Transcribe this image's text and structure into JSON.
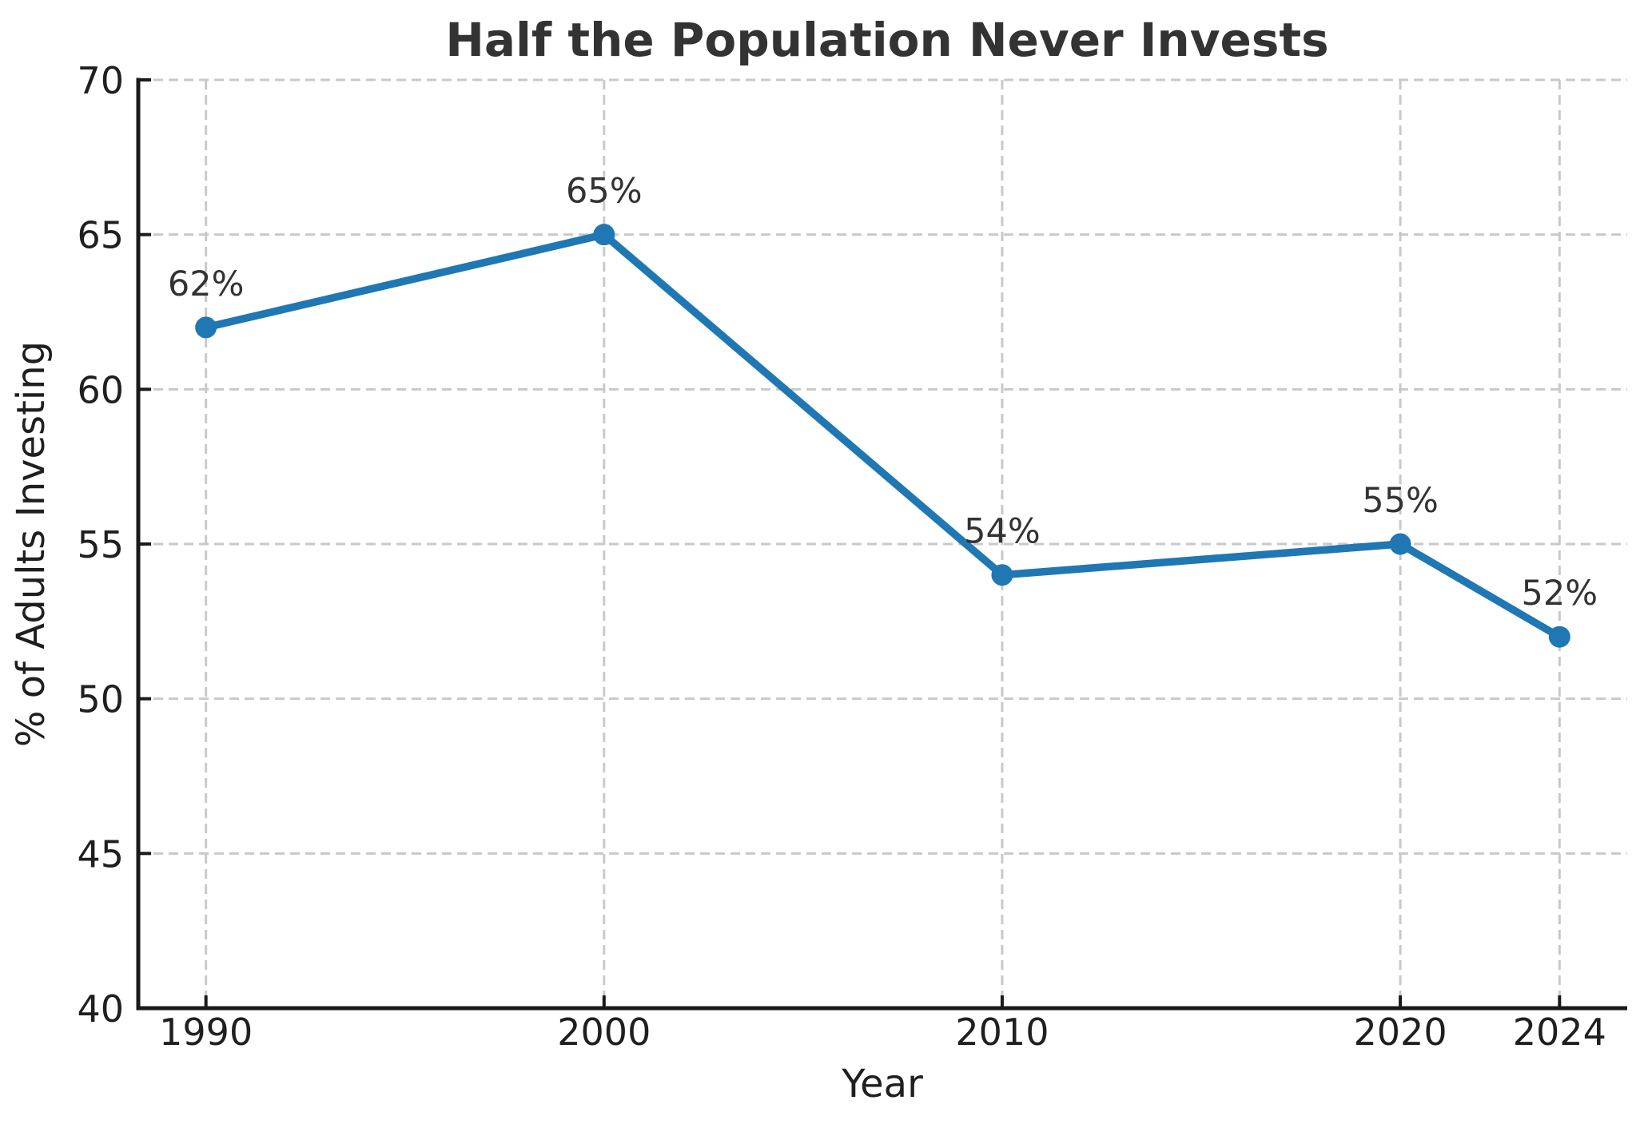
{
  "chart_data": {
    "type": "line",
    "title": "Half the Population Never Invests",
    "xlabel": "Year",
    "ylabel": "% of Adults Investing",
    "x": [
      1990,
      2000,
      2010,
      2020,
      2024
    ],
    "values": [
      62,
      65,
      54,
      55,
      52
    ],
    "point_labels": [
      "62%",
      "65%",
      "54%",
      "55%",
      "52%"
    ],
    "x_tick_labels": [
      "1990",
      "2000",
      "2010",
      "2020",
      "2024"
    ],
    "xticks": [
      1990,
      2000,
      2010,
      2020,
      2024
    ],
    "y_tick_labels": [
      "40",
      "45",
      "50",
      "55",
      "60",
      "65",
      "70"
    ],
    "yticks": [
      40,
      45,
      50,
      55,
      60,
      65,
      70
    ],
    "xlim": [
      1988.3,
      2025.7
    ],
    "ylim": [
      40,
      70
    ],
    "grid": true,
    "grid_style": "dashed",
    "legend": "none",
    "colors": {
      "line": "#1f77b4",
      "marker": "#1f77b4",
      "grid": "#c9c9c9",
      "axis": "#1a1a1a",
      "tick_label": "#1f1f1f",
      "axis_label": "#1f1f1f",
      "title": "#333333",
      "annotation": "#333333",
      "background": "#ffffff"
    }
  }
}
